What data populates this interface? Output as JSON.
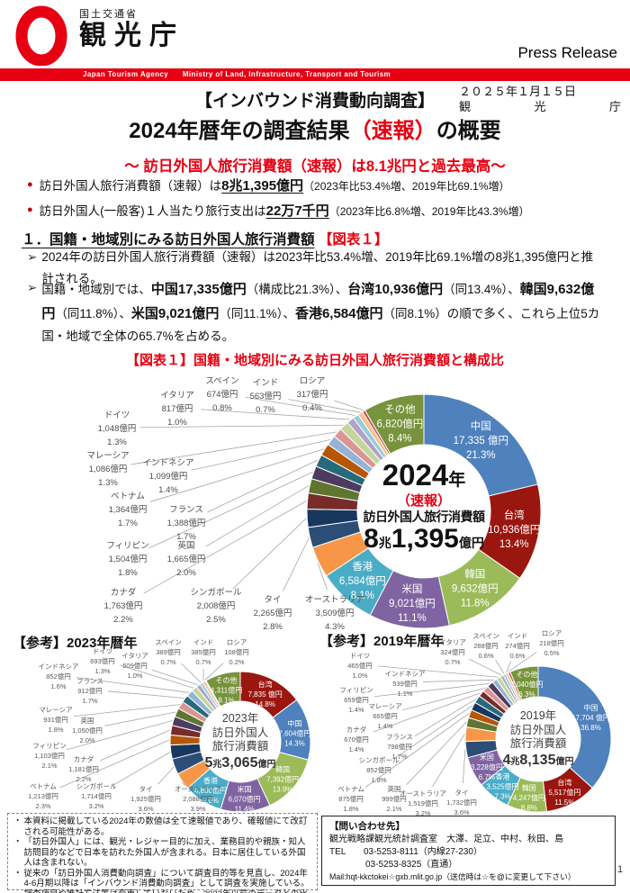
{
  "colors": {
    "brand_red": "#E60012",
    "bullet_red": "#C00000"
  },
  "markers": {
    "bullet": "●",
    "arrow": "➢",
    "note": "・"
  },
  "header": {
    "ministry": "国土交通省",
    "agency": "観光庁",
    "press_release": "Press Release",
    "bar_text": "Japan Tourism Agency      Ministry of Land, Infrastructure, Transport and Tourism"
  },
  "date_block": {
    "line1": "２０２５年１月１５日",
    "agency_chars": [
      "観",
      "光",
      "庁"
    ]
  },
  "title": {
    "line1": "【インバウンド消費動向調査】",
    "line2_runs": [
      {
        "t": "2024年暦年の調査結果"
      },
      {
        "t": "（速報）",
        "r": true
      },
      {
        "t": "の概要"
      }
    ],
    "subtitle": "～ 訪日外国人旅行消費額（速報）は8.1兆円と過去最高～"
  },
  "bullets": [
    {
      "runs": [
        {
          "t": "訪日外国人旅行消費額（速報）は"
        },
        {
          "t": "8兆1,395億円",
          "b": true,
          "u": true
        },
        {
          "t": "（2023年比53.4%増、2019年比69.1%増）",
          "s": true
        }
      ]
    },
    {
      "runs": [
        {
          "t": "訪日外国人(一般客)１人当たり旅行支出は"
        },
        {
          "t": "22万7千円",
          "b": true,
          "u": true
        },
        {
          "t": "（2023年比6.8%増、2019年比43.3%増）",
          "s": true
        }
      ]
    }
  ],
  "section1": {
    "heading_runs": [
      {
        "t": "１．国籍・地域別にみる訪日外国人旅行消費額",
        "hu": true
      },
      {
        "t": " 【図表１】",
        "r": true
      }
    ],
    "para1_runs": [
      {
        "t": "2024年の訪日外国人旅行消費額（速報）は2023年比53.4%増、2019年比69.1%増の8兆1,395億円と推計される。"
      }
    ],
    "para2_runs": [
      {
        "t": "国籍・地域別では、"
      },
      {
        "t": "中国17,335億円",
        "b": true
      },
      {
        "t": "（構成比21.3%）、"
      },
      {
        "t": "台湾10,936億円",
        "b": true
      },
      {
        "t": "（同13.4%）、"
      },
      {
        "t": "韓国9,632億円",
        "b": true
      },
      {
        "t": "（同11.8%）、"
      },
      {
        "t": "米国9,021億円",
        "b": true
      },
      {
        "t": "（同11.1%）、"
      },
      {
        "t": "香港6,584億円",
        "b": true
      },
      {
        "t": "（同8.1%）の順で多く、これら上位5カ国・地域で全体の65.7%を占める。"
      }
    ]
  },
  "figure": {
    "title": "【図表１】国籍・地域別にみる訪日外国人旅行消費額と構成比",
    "ref2023": "【参考】2023年暦年",
    "ref2019": "【参考】2019年暦年"
  },
  "chart_data": [
    {
      "type": "pie",
      "id": "donut2024",
      "title": "2024年（速報）訪日外国人旅行消費額 8兆1,395億円",
      "unit": "億円",
      "center": {
        "y1": "2024",
        "y2": "年",
        "note": "（速報）",
        "label": "訪日外国人旅行消費額",
        "a1": "8",
        "a2": "兆",
        "a3": "1,395",
        "a4": "億円"
      },
      "slices": [
        {
          "name": "中国",
          "value": 17335,
          "pct": 21.3,
          "color": "#4F81BD"
        },
        {
          "name": "台湾",
          "value": 10936,
          "pct": 13.4,
          "color": "#9A1710"
        },
        {
          "name": "韓国",
          "value": 9632,
          "pct": 11.8,
          "color": "#9BBB59"
        },
        {
          "name": "米国",
          "value": 9021,
          "pct": 11.1,
          "color": "#8064A2"
        },
        {
          "name": "香港",
          "value": 6584,
          "pct": 8.1,
          "color": "#4BACC6"
        },
        {
          "name": "オーストラリア",
          "value": 3509,
          "pct": 4.3,
          "color": "#F79646"
        },
        {
          "name": "タイ",
          "value": 2265,
          "pct": 2.8,
          "color": "#2C4D75"
        },
        {
          "name": "シンガポール",
          "value": 2008,
          "pct": 2.5,
          "color": "#17375E"
        },
        {
          "name": "カナダ",
          "value": 1763,
          "pct": 2.2,
          "color": "#772C2A"
        },
        {
          "name": "英国",
          "value": 1665,
          "pct": 2.0,
          "color": "#5F7530"
        },
        {
          "name": "フィリピン",
          "value": 1504,
          "pct": 1.8,
          "color": "#4D3B62"
        },
        {
          "name": "フランス",
          "value": 1388,
          "pct": 1.7,
          "color": "#276A7C"
        },
        {
          "name": "ベトナム",
          "value": 1364,
          "pct": 1.7,
          "color": "#B65708"
        },
        {
          "name": "インドネシア",
          "value": 1099,
          "pct": 1.4,
          "color": "#95B3D7"
        },
        {
          "name": "マレーシア",
          "value": 1086,
          "pct": 1.3,
          "color": "#D99694"
        },
        {
          "name": "ドイツ",
          "value": 1048,
          "pct": 1.3,
          "color": "#C3D69B"
        },
        {
          "name": "イタリア",
          "value": 817,
          "pct": 1.0,
          "color": "#B3A2C7"
        },
        {
          "name": "スペイン",
          "value": 674,
          "pct": 0.8,
          "color": "#92CDDC"
        },
        {
          "name": "インド",
          "value": 563,
          "pct": 0.7,
          "color": "#FAC090"
        },
        {
          "name": "ロシア",
          "value": 317,
          "pct": 0.4,
          "color": "#C0504D"
        },
        {
          "name": "その他",
          "value": 6820,
          "pct": 8.4,
          "color": "#77933C"
        }
      ]
    },
    {
      "type": "pie",
      "id": "donut2023",
      "title": "2023年 訪日外国人旅行消費額 5兆3,065億円",
      "unit": "億円",
      "center": {
        "year": "2023年",
        "l1": "訪日外国人",
        "l2": "旅行消費額",
        "a1": "5",
        "a2": "兆",
        "a3": "3,065",
        "a4": "億円"
      },
      "slices": [
        {
          "name": "台湾",
          "value": 7835,
          "pct": 14.8,
          "color": "#9A1710"
        },
        {
          "name": "中国",
          "value": 7604,
          "pct": 14.3,
          "color": "#4F81BD"
        },
        {
          "name": "韓国",
          "value": 7392,
          "pct": 13.9,
          "color": "#9BBB59"
        },
        {
          "name": "米国",
          "value": 6070,
          "pct": 11.4,
          "color": "#8064A2"
        },
        {
          "name": "香港",
          "value": 4800,
          "pct": 9.0,
          "color": "#4BACC6"
        },
        {
          "name": "オーストラリア",
          "value": 2088,
          "pct": 3.9,
          "color": "#F79646"
        },
        {
          "name": "タイ",
          "value": 1925,
          "pct": 3.6,
          "color": "#2C4D75"
        },
        {
          "name": "シンガポール",
          "value": 1714,
          "pct": 3.2,
          "color": "#17375E"
        },
        {
          "name": "ベトナム",
          "value": 1213,
          "pct": 2.3,
          "color": "#B65708"
        },
        {
          "name": "カナダ",
          "value": 1181,
          "pct": 2.2,
          "color": "#772C2A"
        },
        {
          "name": "フィリピン",
          "value": 1103,
          "pct": 2.1,
          "color": "#4D3B62"
        },
        {
          "name": "英国",
          "value": 1050,
          "pct": 2.0,
          "color": "#5F7530"
        },
        {
          "name": "マレーシア",
          "value": 931,
          "pct": 1.8,
          "color": "#D99694"
        },
        {
          "name": "フランス",
          "value": 912,
          "pct": 1.7,
          "color": "#276A7C"
        },
        {
          "name": "インドネシア",
          "value": 852,
          "pct": 1.6,
          "color": "#95B3D7"
        },
        {
          "name": "ドイツ",
          "value": 693,
          "pct": 1.3,
          "color": "#C3D69B"
        },
        {
          "name": "イタリア",
          "value": 509,
          "pct": 1.0,
          "color": "#B3A2C7"
        },
        {
          "name": "スペイン",
          "value": 389,
          "pct": 0.7,
          "color": "#92CDDC"
        },
        {
          "name": "インド",
          "value": 385,
          "pct": 0.7,
          "color": "#FAC090"
        },
        {
          "name": "ロシア",
          "value": 108,
          "pct": 0.2,
          "color": "#C0504D"
        },
        {
          "name": "その他",
          "value": 4311,
          "pct": 8.1,
          "color": "#77933C"
        }
      ]
    },
    {
      "type": "pie",
      "id": "donut2019",
      "title": "2019年 訪日外国人旅行消費額 4兆8,135億円",
      "unit": "億円",
      "center": {
        "year": "2019年",
        "l1": "訪日外国人",
        "l2": "旅行消費額",
        "a1": "4",
        "a2": "兆",
        "a3": "8,135",
        "a4": "億円"
      },
      "slices": [
        {
          "name": "中国",
          "value": 17704,
          "pct": 36.8,
          "color": "#4F81BD"
        },
        {
          "name": "台湾",
          "value": 5517,
          "pct": 11.5,
          "color": "#9A1710"
        },
        {
          "name": "韓国",
          "value": 4247,
          "pct": 8.8,
          "color": "#9BBB59"
        },
        {
          "name": "香港",
          "value": 3525,
          "pct": 7.3,
          "color": "#4BACC6"
        },
        {
          "name": "米国",
          "value": 3228,
          "pct": 6.7,
          "color": "#8064A2"
        },
        {
          "name": "タイ",
          "value": 1732,
          "pct": 3.6,
          "color": "#2C4D75"
        },
        {
          "name": "オーストラリア",
          "value": 1519,
          "pct": 3.2,
          "color": "#F79646"
        },
        {
          "name": "英国",
          "value": 999,
          "pct": 2.1,
          "color": "#5F7530"
        },
        {
          "name": "ベトナム",
          "value": 875,
          "pct": 1.8,
          "color": "#B65708"
        },
        {
          "name": "シンガポール",
          "value": 852,
          "pct": 1.8,
          "color": "#17375E"
        },
        {
          "name": "フランス",
          "value": 798,
          "pct": 1.7,
          "color": "#276A7C"
        },
        {
          "name": "カナダ",
          "value": 670,
          "pct": 1.4,
          "color": "#772C2A"
        },
        {
          "name": "マレーシア",
          "value": 665,
          "pct": 1.4,
          "color": "#D99694"
        },
        {
          "name": "フィリピン",
          "value": 659,
          "pct": 1.4,
          "color": "#4D3B62"
        },
        {
          "name": "インドネシア",
          "value": 539,
          "pct": 1.1,
          "color": "#95B3D7"
        },
        {
          "name": "ドイツ",
          "value": 465,
          "pct": 1.0,
          "color": "#C3D69B"
        },
        {
          "name": "イタリア",
          "value": 324,
          "pct": 0.7,
          "color": "#B3A2C7"
        },
        {
          "name": "スペイン",
          "value": 288,
          "pct": 0.6,
          "color": "#92CDDC"
        },
        {
          "name": "インド",
          "value": 274,
          "pct": 0.6,
          "color": "#FAC090"
        },
        {
          "name": "ロシア",
          "value": 218,
          "pct": 0.5,
          "color": "#C0504D"
        },
        {
          "name": "その他",
          "value": 3040,
          "pct": 6.3,
          "color": "#77933C"
        }
      ]
    }
  ],
  "notes": [
    "本資料に掲載している2024年の数値は全て速報値であり、確報値にて改訂される可能性がある。",
    "「訪日外国人」には、観光・レジャー目的に加え、業務目的や親族・知人訪問目的などで日本を訪れた外国人が含まれる。日本に居住している外国人は含まれない。",
    "従来の「訪日外国人消費動向調査」について調査目的等を見直し、2024年4-6月期以降は「インバウンド消費動向調査」として調査を実施している。調査項目や推計方法等は変更していないため、2023年以前のデータとの比較は可能である。"
  ],
  "contact": {
    "title": "【問い合わせ先】",
    "dept": "観光戦略課観光統計調査室　大澤、足立、中村、秋田、島",
    "tel1": "TEL　　03-5253-8111（内線27-230）",
    "tel2": "　　　　03-5253-8325（直通）",
    "mail": "Mail:hqt-kkctokei☆gxb.mlit.go.jp（送信時は☆を@に変更して下さい）"
  },
  "page_number": "1"
}
